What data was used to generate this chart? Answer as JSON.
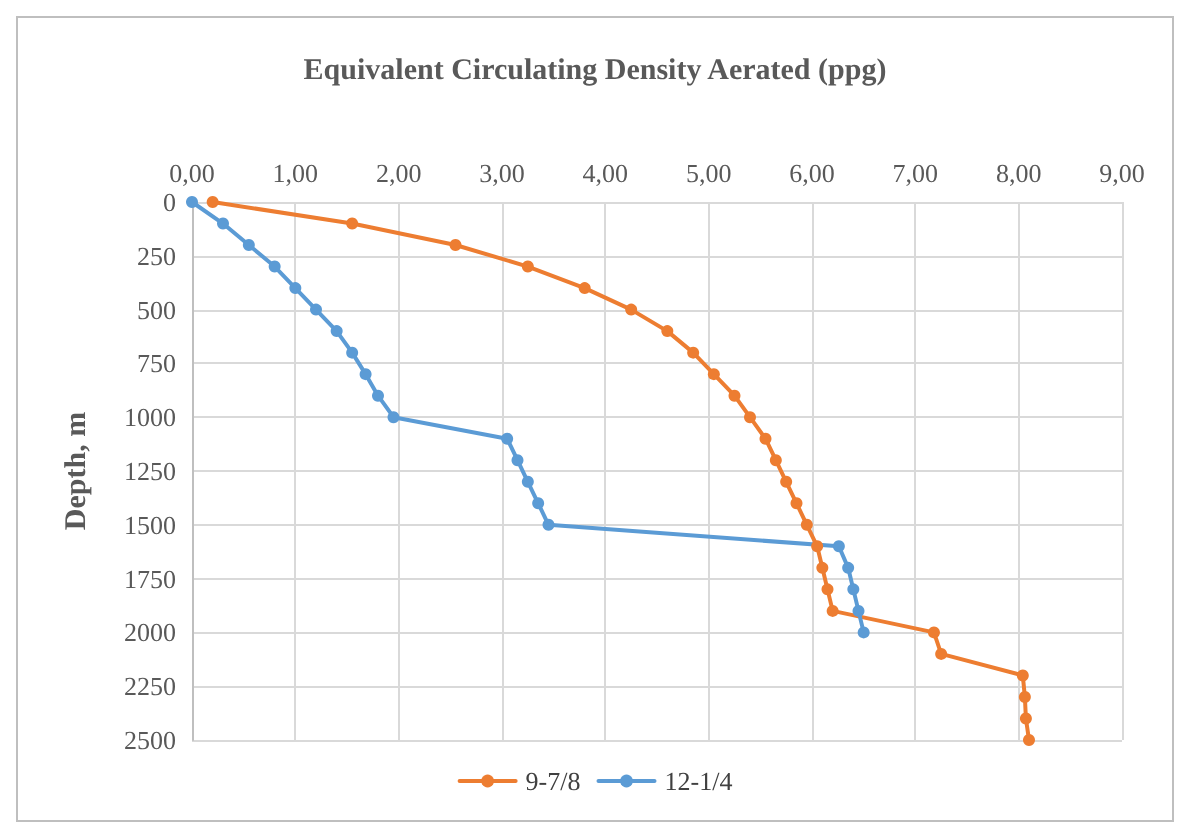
{
  "chart_data": {
    "type": "line",
    "title": "Equivalent Circulating Density Aerated (ppg)",
    "ylabel": "Depth, m",
    "xlim": [
      0,
      9
    ],
    "xticks": [
      {
        "value": 0,
        "label": "0,00"
      },
      {
        "value": 1,
        "label": "1,00"
      },
      {
        "value": 2,
        "label": "2,00"
      },
      {
        "value": 3,
        "label": "3,00"
      },
      {
        "value": 4,
        "label": "4,00"
      },
      {
        "value": 5,
        "label": "5,00"
      },
      {
        "value": 6,
        "label": "6,00"
      },
      {
        "value": 7,
        "label": "7,00"
      },
      {
        "value": 8,
        "label": "8,00"
      },
      {
        "value": 9,
        "label": "9,00"
      }
    ],
    "ylim": [
      2500,
      0
    ],
    "yticks": [
      0,
      250,
      500,
      750,
      1000,
      1250,
      1500,
      1750,
      2000,
      2250,
      2500
    ],
    "grid": true,
    "legend": "bottom",
    "marker": "circle",
    "line_style": "solid",
    "series": [
      {
        "name": "9-7/8",
        "color": "#ed7d31",
        "x": [
          0.2,
          1.55,
          2.55,
          3.25,
          3.8,
          4.25,
          4.6,
          4.85,
          5.05,
          5.25,
          5.4,
          5.55,
          5.65,
          5.75,
          5.85,
          5.95,
          6.05,
          6.1,
          6.15,
          6.2,
          7.18,
          7.25,
          8.04,
          8.06,
          8.07,
          8.1
        ],
        "values": [
          0,
          100,
          200,
          300,
          400,
          500,
          600,
          700,
          800,
          900,
          1000,
          1100,
          1200,
          1300,
          1400,
          1500,
          1600,
          1700,
          1800,
          1900,
          2000,
          2100,
          2200,
          2300,
          2400,
          2500
        ]
      },
      {
        "name": "12-1/4",
        "color": "#5b9bd5",
        "x": [
          0,
          0.3,
          0.55,
          0.8,
          1.0,
          1.2,
          1.4,
          1.55,
          1.68,
          1.8,
          1.95,
          3.05,
          3.15,
          3.25,
          3.35,
          3.45,
          6.26,
          6.35,
          6.4,
          6.45,
          6.5
        ],
        "values": [
          0,
          100,
          200,
          300,
          400,
          500,
          600,
          700,
          800,
          900,
          1000,
          1100,
          1200,
          1300,
          1400,
          1500,
          1600,
          1700,
          1800,
          1900,
          2000
        ]
      }
    ]
  }
}
